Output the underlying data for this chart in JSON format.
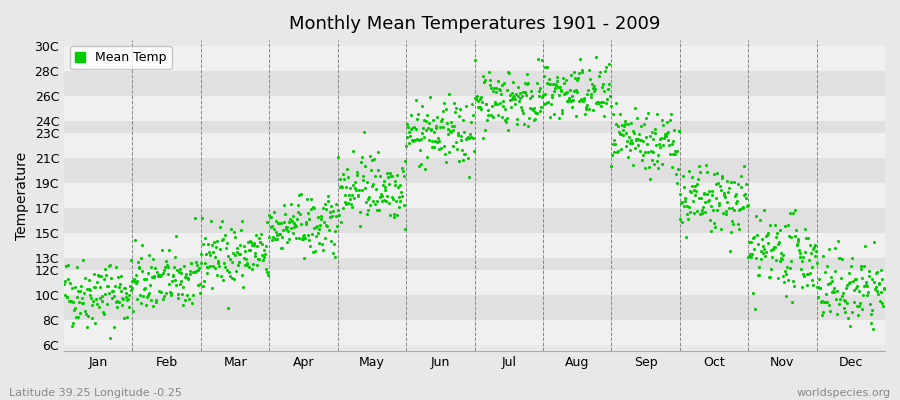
{
  "title": "Monthly Mean Temperatures 1901 - 2009",
  "ylabel": "Temperature",
  "subtitle_left": "Latitude 39.25 Longitude -0.25",
  "subtitle_right": "worldspecies.org",
  "legend_label": "Mean Temp",
  "dot_color": "#00cc00",
  "background_color": "#e8e8e8",
  "plot_bg_color": "#e8e8e8",
  "months": [
    "Jan",
    "Feb",
    "Mar",
    "Apr",
    "May",
    "Jun",
    "Jul",
    "Aug",
    "Sep",
    "Oct",
    "Nov",
    "Dec"
  ],
  "month_means": [
    10.2,
    11.2,
    13.2,
    15.5,
    18.8,
    23.0,
    25.8,
    26.2,
    22.2,
    17.5,
    13.2,
    10.5
  ],
  "month_stds": [
    1.4,
    1.3,
    1.3,
    1.2,
    1.4,
    1.3,
    1.2,
    1.2,
    1.3,
    1.4,
    1.5,
    1.5
  ],
  "yticks": [
    6,
    8,
    10,
    12,
    13,
    15,
    17,
    19,
    21,
    23,
    24,
    26,
    28,
    30
  ],
  "ylim": [
    5.5,
    30.5
  ],
  "n_years": 109,
  "year_start": 1901,
  "figsize": [
    9.0,
    4.0
  ],
  "dpi": 100,
  "grid_colors": [
    "#f0f0f0",
    "#e0e0e0"
  ]
}
